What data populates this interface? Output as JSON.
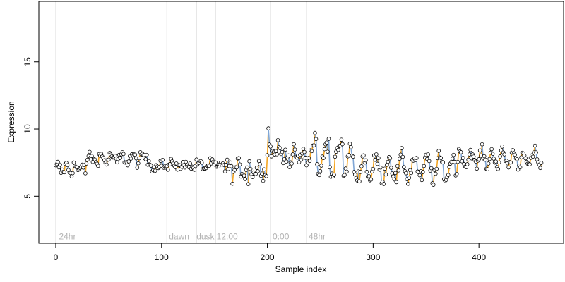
{
  "chart_data": {
    "type": "scatter",
    "title": "",
    "xlabel": "Sample index",
    "ylabel": "Expression",
    "xlim": [
      -16,
      480
    ],
    "ylim": [
      1.5,
      19.5
    ],
    "x_ticks": [
      0,
      100,
      200,
      300,
      400
    ],
    "y_ticks": [
      5,
      10,
      15
    ],
    "n_samples": 460,
    "vlines": [
      0,
      105,
      133,
      151,
      203,
      237
    ],
    "annotations": [
      {
        "label": "24hr",
        "x": 3
      },
      {
        "label": "dawn",
        "x": 107
      },
      {
        "label": "dusk",
        "x": 133
      },
      {
        "label": "12:00",
        "x": 152
      },
      {
        "label": "0:00",
        "x": 205
      },
      {
        "label": "48hr",
        "x": 239
      }
    ],
    "annotation_y": 2.0,
    "colors": {
      "up_segment": "#f5a623",
      "down_segment": "#7fa6d6",
      "vline": "#dddddd",
      "point_stroke": "#000000",
      "point_fill": "#ffffff",
      "annotation": "#b3b3b3"
    },
    "segments": [
      {
        "x0": 0,
        "x1": 30,
        "base": 7.05,
        "amp": 0.25,
        "period": 8,
        "noise": 0.35
      },
      {
        "x0": 30,
        "x1": 90,
        "base": 7.8,
        "amp": 0.25,
        "period": 10,
        "noise": 0.3
      },
      {
        "x0": 90,
        "x1": 160,
        "base": 7.3,
        "amp": 0.2,
        "period": 12,
        "noise": 0.25
      },
      {
        "x0": 160,
        "x1": 200,
        "base": 7.0,
        "amp": 0.3,
        "period": 10,
        "noise": 0.45
      },
      {
        "x0": 200,
        "x1": 215,
        "base": 8.4,
        "amp": 0.3,
        "period": 8,
        "noise": 0.4
      },
      {
        "x0": 215,
        "x1": 240,
        "base": 7.9,
        "amp": 0.4,
        "period": 8,
        "noise": 0.4
      },
      {
        "x0": 240,
        "x1": 280,
        "base": 7.7,
        "amp": 1.1,
        "period": 12,
        "noise": 0.35
      },
      {
        "x0": 280,
        "x1": 380,
        "base": 7.1,
        "amp": 0.8,
        "period": 12,
        "noise": 0.4
      },
      {
        "x0": 380,
        "x1": 461,
        "base": 7.8,
        "amp": 0.55,
        "period": 10,
        "noise": 0.3
      }
    ]
  }
}
